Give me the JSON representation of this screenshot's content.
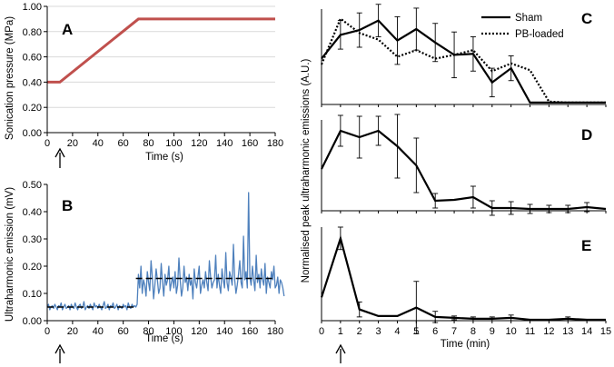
{
  "colors": {
    "pressure": "#c0504d",
    "emission": "#4f81bd",
    "axis": "#000000"
  },
  "chart_data": [
    {
      "panel": "A",
      "type": "line",
      "title": "",
      "xlabel": "Time (s)",
      "ylabel": "Sonication pressure (MPa)",
      "xlim": [
        0,
        180
      ],
      "ylim": [
        0,
        1.0
      ],
      "xticks": [
        0,
        20,
        40,
        60,
        80,
        100,
        120,
        140,
        160,
        180
      ],
      "xtick_labels": [
        "0",
        "20",
        "40",
        "60",
        "80",
        "100",
        "120",
        "140",
        "160",
        "180"
      ],
      "yticks": [
        0,
        0.2,
        0.4,
        0.6,
        0.8,
        1.0
      ],
      "ytick_labels": [
        "0.00",
        "0.20",
        "0.40",
        "0.60",
        "0.80",
        "1.00"
      ],
      "x": [
        0,
        10,
        72,
        180
      ],
      "values": [
        0.4,
        0.4,
        0.9,
        0.9
      ],
      "arrow_at": 10
    },
    {
      "panel": "B",
      "type": "line",
      "title": "",
      "xlabel": "Time (s)",
      "ylabel": "Ultraharmonic emission (mV)",
      "xlim": [
        0,
        180
      ],
      "ylim": [
        0,
        0.5
      ],
      "xticks": [
        0,
        20,
        40,
        60,
        80,
        100,
        120,
        140,
        160,
        180
      ],
      "xtick_labels": [
        "0",
        "20",
        "40",
        "60",
        "80",
        "100",
        "120",
        "140",
        "160",
        "180"
      ],
      "yticks": [
        0,
        0.1,
        0.2,
        0.3,
        0.4,
        0.5
      ],
      "ytick_labels": [
        "0.00",
        "0.10",
        "0.20",
        "0.30",
        "0.40",
        "0.50"
      ],
      "x_start": 0,
      "x_step": 1,
      "values": [
        0.05,
        0.06,
        0.04,
        0.05,
        0.055,
        0.045,
        0.06,
        0.05,
        0.04,
        0.055,
        0.05,
        0.065,
        0.04,
        0.05,
        0.06,
        0.045,
        0.05,
        0.055,
        0.04,
        0.06,
        0.05,
        0.045,
        0.065,
        0.05,
        0.04,
        0.055,
        0.06,
        0.045,
        0.05,
        0.07,
        0.04,
        0.05,
        0.055,
        0.045,
        0.06,
        0.05,
        0.04,
        0.065,
        0.05,
        0.055,
        0.045,
        0.06,
        0.05,
        0.04,
        0.055,
        0.07,
        0.045,
        0.05,
        0.06,
        0.04,
        0.055,
        0.05,
        0.065,
        0.045,
        0.05,
        0.06,
        0.04,
        0.055,
        0.05,
        0.045,
        0.06,
        0.05,
        0.055,
        0.04,
        0.065,
        0.05,
        0.045,
        0.06,
        0.05,
        0.055,
        0.05,
        0.06,
        0.17,
        0.12,
        0.2,
        0.1,
        0.15,
        0.13,
        0.09,
        0.18,
        0.14,
        0.11,
        0.22,
        0.16,
        0.08,
        0.13,
        0.19,
        0.15,
        0.1,
        0.12,
        0.21,
        0.14,
        0.09,
        0.17,
        0.13,
        0.15,
        0.2,
        0.11,
        0.14,
        0.16,
        0.12,
        0.18,
        0.1,
        0.13,
        0.23,
        0.15,
        0.09,
        0.12,
        0.2,
        0.14,
        0.16,
        0.11,
        0.17,
        0.13,
        0.15,
        0.08,
        0.19,
        0.14,
        0.12,
        0.16,
        0.2,
        0.1,
        0.13,
        0.15,
        0.12,
        0.18,
        0.14,
        0.11,
        0.22,
        0.16,
        0.12,
        0.14,
        0.15,
        0.24,
        0.12,
        0.17,
        0.13,
        0.1,
        0.19,
        0.15,
        0.12,
        0.25,
        0.14,
        0.11,
        0.18,
        0.16,
        0.13,
        0.28,
        0.15,
        0.1,
        0.13,
        0.17,
        0.22,
        0.14,
        0.12,
        0.31,
        0.15,
        0.18,
        0.12,
        0.47,
        0.16,
        0.13,
        0.2,
        0.15,
        0.11,
        0.24,
        0.14,
        0.17,
        0.12,
        0.19,
        0.15,
        0.13,
        0.21,
        0.1,
        0.16,
        0.14,
        0.12,
        0.18,
        0.15,
        0.2,
        0.12,
        0.13,
        0.16,
        0.1,
        0.15,
        0.14,
        0.12,
        0.09
      ],
      "reference_lines": [
        {
          "from": 0,
          "to": 70,
          "y": 0.05
        },
        {
          "from": 70,
          "to": 180,
          "y": 0.155
        }
      ],
      "arrow_at": 10
    },
    {
      "panel": "C",
      "type": "line",
      "xlim": [
        0,
        15
      ],
      "ylim": [
        0,
        1.0
      ],
      "x": [
        0,
        1,
        2,
        3,
        4,
        5,
        6,
        7,
        8,
        9,
        10,
        11,
        12,
        13,
        14,
        15
      ],
      "series": [
        {
          "name": "Sham",
          "style": "solid",
          "values": [
            0.48,
            0.73,
            0.78,
            0.88,
            0.67,
            0.79,
            0.65,
            0.52,
            0.53,
            0.23,
            0.38,
            0.02,
            0.02,
            0.02,
            0.02,
            0.02
          ],
          "errors": [
            0,
            0.15,
            0.18,
            0.17,
            0.25,
            0.22,
            0.2,
            0.24,
            0.18,
            0.15,
            0.13,
            0,
            0,
            0,
            0,
            0
          ]
        },
        {
          "name": "PB-loaded",
          "style": "dotted",
          "values": [
            0.42,
            0.9,
            0.75,
            0.68,
            0.5,
            0.57,
            0.48,
            0.52,
            0.57,
            0.35,
            0.43,
            0.36,
            0.03,
            0.02,
            0.02,
            0.02
          ]
        }
      ],
      "legend": [
        "Sham",
        "PB-loaded"
      ],
      "legend_position": "top-right"
    },
    {
      "panel": "D",
      "type": "line",
      "xlim": [
        0,
        15
      ],
      "ylim": [
        0,
        1.0
      ],
      "x": [
        0,
        1,
        2,
        3,
        4,
        5,
        6,
        7,
        8,
        9,
        10,
        11,
        12,
        13,
        14,
        15
      ],
      "series": [
        {
          "name": "Sham",
          "style": "solid",
          "values": [
            0.46,
            0.88,
            0.81,
            0.88,
            0.71,
            0.5,
            0.11,
            0.12,
            0.15,
            0.03,
            0.03,
            0.02,
            0.02,
            0.02,
            0.04,
            0.02
          ],
          "errors": [
            0,
            0.17,
            0.23,
            0.16,
            0.35,
            0.3,
            0.08,
            0,
            0.12,
            0.08,
            0.07,
            0.05,
            0.04,
            0.04,
            0.05,
            0
          ]
        }
      ]
    },
    {
      "panel": "E",
      "type": "line",
      "xlabel": "Time (min)",
      "ylabel": "Normalised peak ultraharmonic emissions (A.U.)",
      "xlim": [
        0,
        15
      ],
      "ylim": [
        0,
        1.0
      ],
      "xticks": [
        0,
        1,
        2,
        3,
        4,
        5,
        6,
        7,
        8,
        9,
        10,
        11,
        12,
        13,
        14,
        15
      ],
      "xtick_labels": [
        "0",
        "1",
        "2",
        "3",
        "4",
        "5",
        "6",
        "7",
        "8",
        "9",
        "10",
        "11",
        "12",
        "13",
        "14",
        "15"
      ],
      "x": [
        0,
        1,
        2,
        3,
        4,
        5,
        6,
        7,
        8,
        9,
        10,
        11,
        12,
        13,
        14,
        15
      ],
      "series": [
        {
          "name": "Sham",
          "style": "solid",
          "values": [
            0.25,
            0.88,
            0.12,
            0.05,
            0.05,
            0.14,
            0.04,
            0.03,
            0.02,
            0.02,
            0.03,
            0.01,
            0.01,
            0.02,
            0.01,
            0.01
          ],
          "errors": [
            0,
            0.12,
            0.08,
            0,
            0,
            0.28,
            0.06,
            0.02,
            0.02,
            0.02,
            0.03,
            0,
            0,
            0.02,
            0,
            0
          ]
        }
      ],
      "arrow_at": 1
    }
  ]
}
